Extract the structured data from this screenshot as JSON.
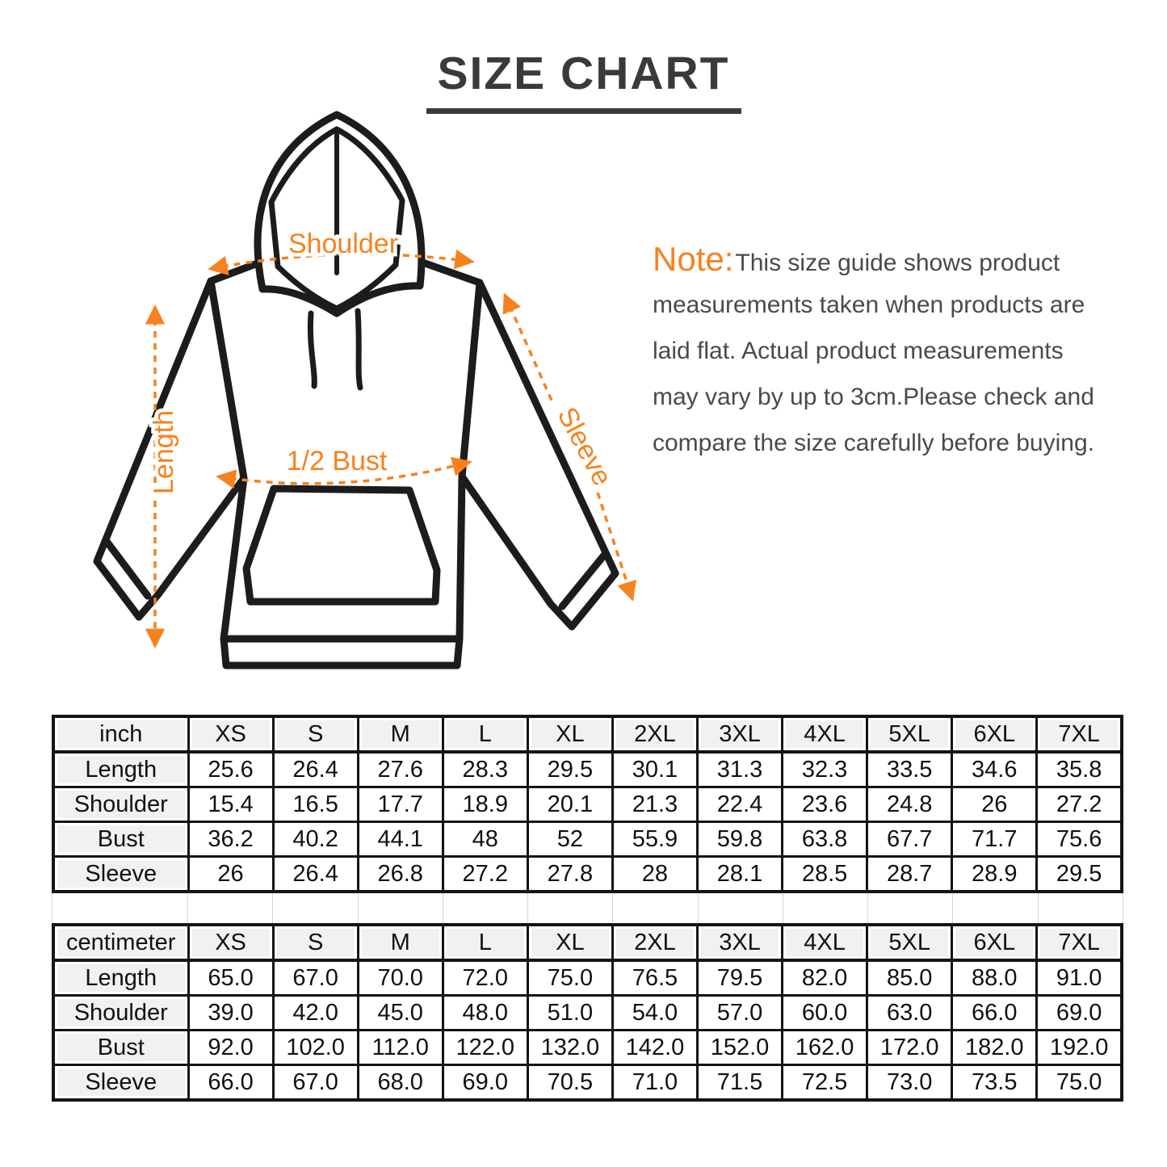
{
  "title": "SIZE CHART",
  "accent_color": "#f6821f",
  "note": {
    "label": "Note:",
    "lines": [
      "This size guide shows product",
      "measurements taken when products are",
      "laid flat. Actual product measurements",
      "may vary by up to 3cm.Please check and",
      "compare the size carefully before buying."
    ]
  },
  "diagram": {
    "labels": {
      "shoulder": "Shoulder",
      "length": "Length",
      "bust": "1/2 Bust",
      "sleeve": "Sleeve"
    }
  },
  "tables": [
    {
      "unit": "inch",
      "sizes": [
        "XS",
        "S",
        "M",
        "L",
        "XL",
        "2XL",
        "3XL",
        "4XL",
        "5XL",
        "6XL",
        "7XL"
      ],
      "rows": [
        {
          "label": "Length",
          "values": [
            "25.6",
            "26.4",
            "27.6",
            "28.3",
            "29.5",
            "30.1",
            "31.3",
            "32.3",
            "33.5",
            "34.6",
            "35.8"
          ]
        },
        {
          "label": "Shoulder",
          "values": [
            "15.4",
            "16.5",
            "17.7",
            "18.9",
            "20.1",
            "21.3",
            "22.4",
            "23.6",
            "24.8",
            "26",
            "27.2"
          ]
        },
        {
          "label": "Bust",
          "values": [
            "36.2",
            "40.2",
            "44.1",
            "48",
            "52",
            "55.9",
            "59.8",
            "63.8",
            "67.7",
            "71.7",
            "75.6"
          ]
        },
        {
          "label": "Sleeve",
          "values": [
            "26",
            "26.4",
            "26.8",
            "27.2",
            "27.8",
            "28",
            "28.1",
            "28.5",
            "28.7",
            "28.9",
            "29.5"
          ]
        }
      ]
    },
    {
      "unit": "centimeter",
      "sizes": [
        "XS",
        "S",
        "M",
        "L",
        "XL",
        "2XL",
        "3XL",
        "4XL",
        "5XL",
        "6XL",
        "7XL"
      ],
      "rows": [
        {
          "label": "Length",
          "values": [
            "65.0",
            "67.0",
            "70.0",
            "72.0",
            "75.0",
            "76.5",
            "79.5",
            "82.0",
            "85.0",
            "88.0",
            "91.0"
          ]
        },
        {
          "label": "Shoulder",
          "values": [
            "39.0",
            "42.0",
            "45.0",
            "48.0",
            "51.0",
            "54.0",
            "57.0",
            "60.0",
            "63.0",
            "66.0",
            "69.0"
          ]
        },
        {
          "label": "Bust",
          "values": [
            "92.0",
            "102.0",
            "112.0",
            "122.0",
            "132.0",
            "142.0",
            "152.0",
            "162.0",
            "172.0",
            "182.0",
            "192.0"
          ]
        },
        {
          "label": "Sleeve",
          "values": [
            "66.0",
            "67.0",
            "68.0",
            "69.0",
            "70.5",
            "71.0",
            "71.5",
            "72.5",
            "73.0",
            "73.5",
            "75.0"
          ]
        }
      ]
    }
  ]
}
